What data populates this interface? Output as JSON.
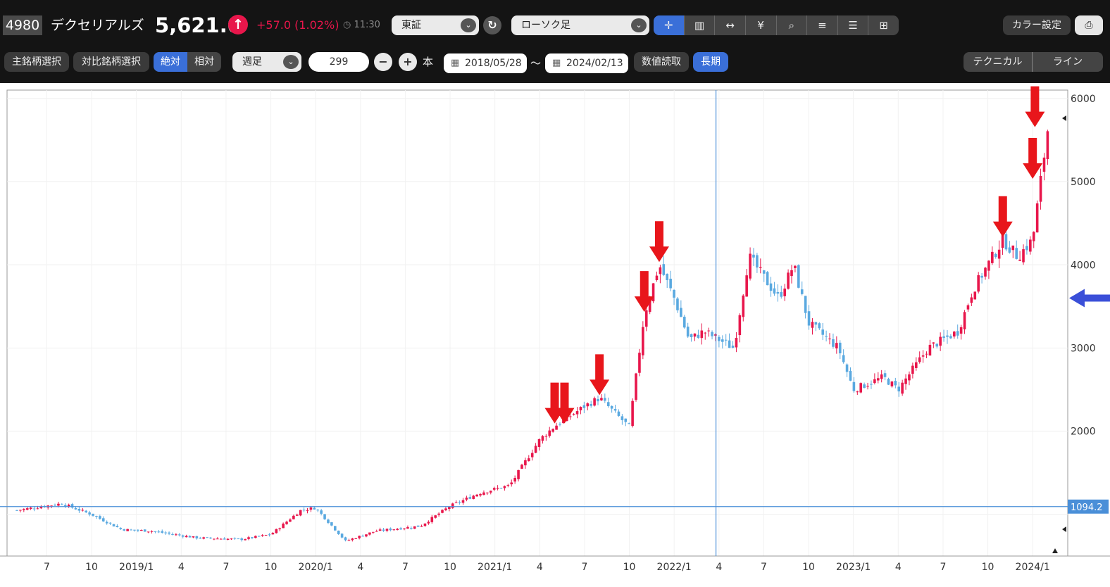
{
  "header": {
    "code": "4980",
    "name": "デクセリアルズ",
    "price": "5,621.0",
    "change": "+57.0 (1.02%)",
    "time": "11:30",
    "market": "東証",
    "chart_style": "ローソク足",
    "color_settings": "カラー設定",
    "up_icon": "arrow-up-circle-icon"
  },
  "toolbar": {
    "main_select": "主銘柄選択",
    "compare_select": "対比銘柄選択",
    "absolute": "絶対",
    "relative": "相対",
    "period": "週足",
    "count": "299",
    "count_unit": "本",
    "date_from": "2018/05/28",
    "date_sep": "～",
    "date_to": "2024/02/13",
    "read_values": "数値読取",
    "long_term": "長期",
    "technical": "テクニカル",
    "line": "ライン",
    "icons": [
      "crosshair-icon",
      "volume-bars-icon",
      "range-icon",
      "yen-icon",
      "zoom-icon",
      "indicator-icon",
      "detail-icon",
      "grid-icon"
    ]
  },
  "chart_data": {
    "type": "candlestick",
    "ylim": [
      500,
      6100
    ],
    "yticks": [
      "6000",
      "5000",
      "4000",
      "3000",
      "2000"
    ],
    "x_tick_labels": [
      "7",
      "10",
      "2019/1",
      "4",
      "7",
      "10",
      "2020/1",
      "4",
      "7",
      "10",
      "2021/1",
      "4",
      "7",
      "10",
      "2022/1",
      "4",
      "7",
      "10",
      "2023/1",
      "4",
      "7",
      "10",
      "2024/1"
    ],
    "crosshair_value": "1094.2",
    "colors": {
      "up": "#e8164b",
      "down": "#5aa9e0",
      "crosshair": "#4a8fd8",
      "marker": "#e8161b",
      "pointer": "#3a4fd8"
    },
    "close_trend": [
      [
        "2018/05",
        1050
      ],
      [
        "2018/08",
        1130
      ],
      [
        "2018/10",
        1000
      ],
      [
        "2018/12",
        820
      ],
      [
        "2019/02",
        800
      ],
      [
        "2019/05",
        720
      ],
      [
        "2019/08",
        700
      ],
      [
        "2019/10",
        760
      ],
      [
        "2019/12",
        1050
      ],
      [
        "2020/01",
        1080
      ],
      [
        "2020/03",
        680
      ],
      [
        "2020/05",
        800
      ],
      [
        "2020/08",
        860
      ],
      [
        "2020/10",
        1100
      ],
      [
        "2020/12",
        1260
      ],
      [
        "2021/02",
        1350
      ],
      [
        "2021/04",
        1900
      ],
      [
        "2021/05",
        2060
      ],
      [
        "2021/07",
        2300
      ],
      [
        "2021/08",
        2400
      ],
      [
        "2021/10",
        2050
      ],
      [
        "2021/11",
        3400
      ],
      [
        "2021/12",
        4000
      ],
      [
        "2022/01",
        3600
      ],
      [
        "2022/02",
        3100
      ],
      [
        "2022/03",
        3200
      ],
      [
        "2022/05",
        3000
      ],
      [
        "2022/06",
        4100
      ],
      [
        "2022/08",
        3600
      ],
      [
        "2022/09",
        4000
      ],
      [
        "2022/10",
        3300
      ],
      [
        "2022/12",
        3000
      ],
      [
        "2023/01",
        2500
      ],
      [
        "2023/03",
        2650
      ],
      [
        "2023/04",
        2500
      ],
      [
        "2023/06",
        3000
      ],
      [
        "2023/08",
        3200
      ],
      [
        "2023/09",
        3700
      ],
      [
        "2023/11",
        4300
      ],
      [
        "2023/12",
        4100
      ],
      [
        "2024/01",
        4300
      ],
      [
        "2024/02",
        5621
      ]
    ]
  }
}
